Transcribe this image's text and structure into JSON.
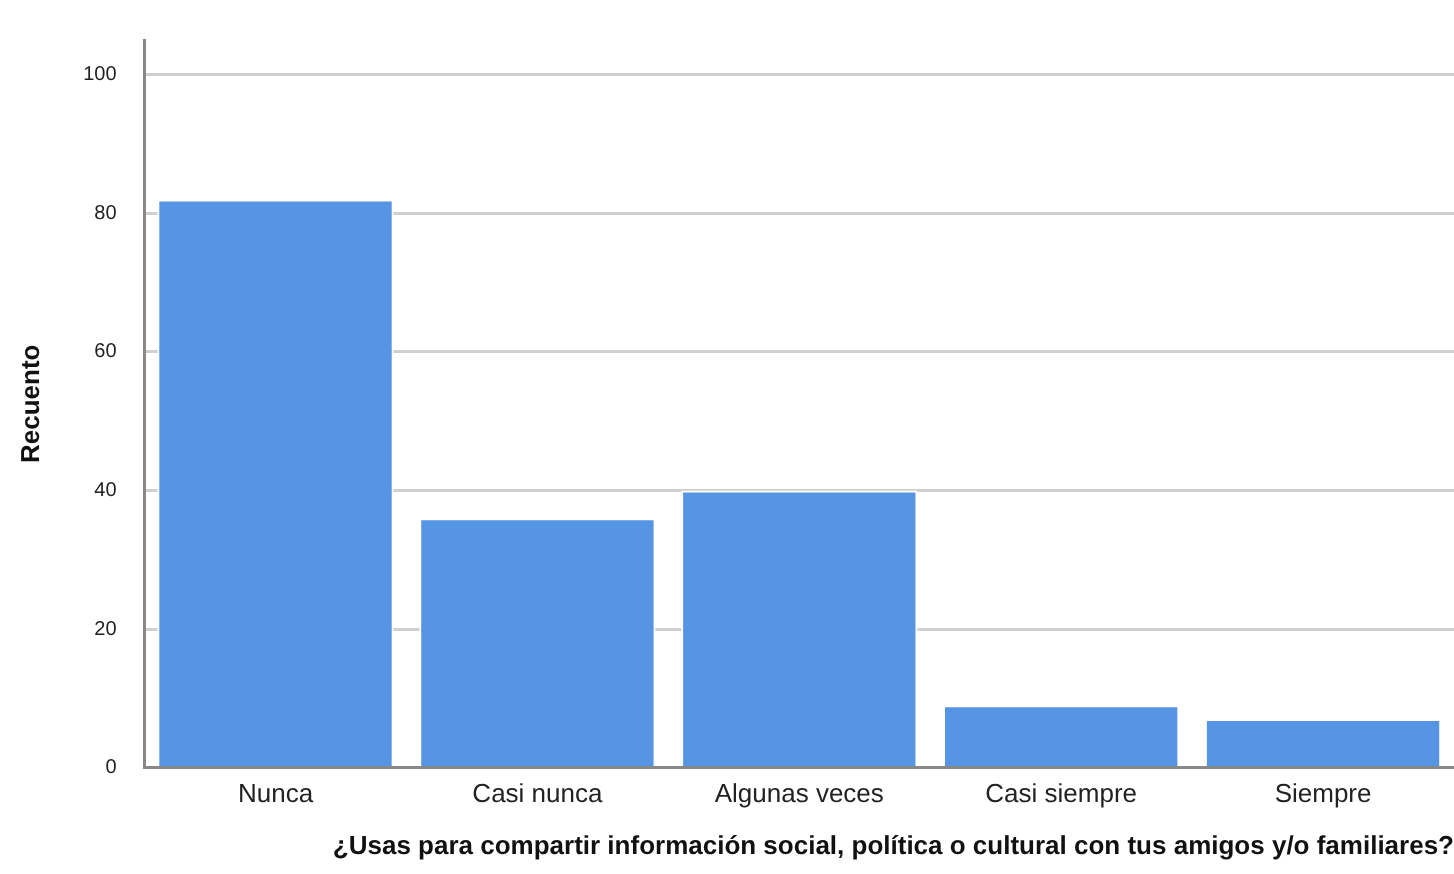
{
  "chart_data": {
    "type": "bar",
    "xlabel": "¿Usas para compartir información social, política o cultural con tus amigos y/o familiares?",
    "ylabel": "Recuento",
    "categories": [
      "Nunca",
      "Casi nunca",
      "Algunas veces",
      "Casi siempre",
      "Siempre"
    ],
    "values": [
      82,
      36,
      40,
      9,
      7
    ],
    "color": "#5595e3",
    "ylim": [
      0,
      105
    ],
    "yticks": [
      0,
      20,
      40,
      60,
      80,
      100
    ],
    "grid": "y"
  }
}
